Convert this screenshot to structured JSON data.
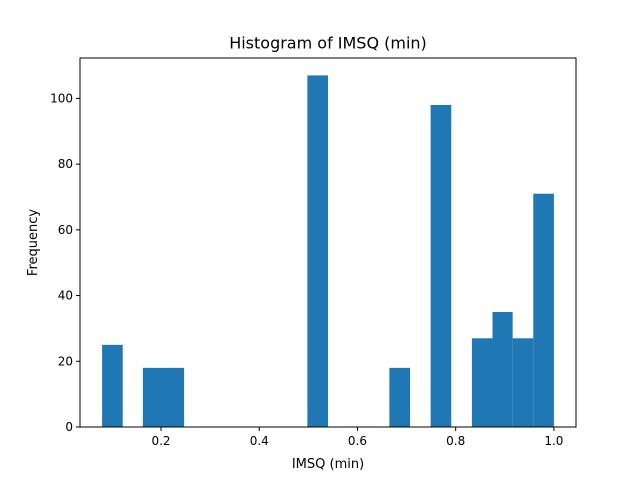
{
  "chart_data": {
    "type": "bar",
    "title": "Histogram of IMSQ (min)",
    "xlabel": "IMSQ (min)",
    "ylabel": "Frequency",
    "xlim": [
      0.035,
      1.045
    ],
    "ylim": [
      0,
      112.3
    ],
    "xticks": [
      0.2,
      0.4,
      0.6,
      0.8,
      1.0
    ],
    "xtick_labels": [
      "0.2",
      "0.4",
      "0.6",
      "0.8",
      "1.0"
    ],
    "yticks": [
      0,
      20,
      40,
      60,
      80,
      100
    ],
    "ytick_labels": [
      "0",
      "20",
      "40",
      "60",
      "80",
      "100"
    ],
    "grid": false,
    "color": "#1f77b4",
    "bins": [
      {
        "x0": 0.08,
        "x1": 0.122,
        "count": 25
      },
      {
        "x0": 0.163,
        "x1": 0.205,
        "count": 18
      },
      {
        "x0": 0.205,
        "x1": 0.247,
        "count": 18
      },
      {
        "x0": 0.498,
        "x1": 0.54,
        "count": 107
      },
      {
        "x0": 0.665,
        "x1": 0.707,
        "count": 18
      },
      {
        "x0": 0.749,
        "x1": 0.791,
        "count": 98
      },
      {
        "x0": 0.833,
        "x1": 0.875,
        "count": 27
      },
      {
        "x0": 0.875,
        "x1": 0.916,
        "count": 35
      },
      {
        "x0": 0.916,
        "x1": 0.958,
        "count": 27
      },
      {
        "x0": 0.958,
        "x1": 1.0,
        "count": 71
      }
    ]
  }
}
